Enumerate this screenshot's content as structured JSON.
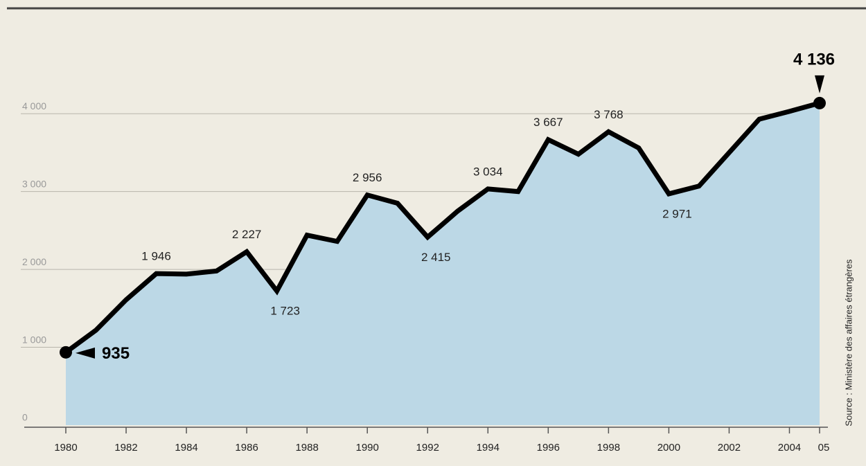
{
  "chart_data": {
    "type": "area",
    "source": "Source : Ministère des affaires étrangères",
    "x": [
      1980,
      1981,
      1982,
      1983,
      1984,
      1985,
      1986,
      1987,
      1988,
      1989,
      1990,
      1991,
      1992,
      1993,
      1994,
      1995,
      1996,
      1997,
      1998,
      1999,
      2000,
      2001,
      2002,
      2003,
      2004,
      2005
    ],
    "series": [
      {
        "color": "#000000",
        "fill": "#bcd8e6",
        "values": [
          935,
          1220,
          1610,
          1946,
          1940,
          1980,
          2227,
          1723,
          2440,
          2360,
          2956,
          2850,
          2415,
          2750,
          3034,
          3000,
          3667,
          3480,
          3768,
          3560,
          2971,
          3070,
          3500,
          3930,
          4030,
          4136
        ],
        "value_labels": [
          "935",
          null,
          null,
          "1 946",
          null,
          null,
          "2 227",
          "1 723",
          null,
          null,
          "2 956",
          null,
          "2 415",
          null,
          "3 034",
          null,
          "3 667",
          null,
          "3 768",
          null,
          "2 971",
          null,
          null,
          null,
          null,
          "4 136"
        ]
      }
    ],
    "xlim": [
      1980,
      2005
    ],
    "xticks": [
      1980,
      1982,
      1984,
      1986,
      1988,
      1990,
      1992,
      1994,
      1996,
      1998,
      2000,
      2002,
      2004,
      {
        "value": 2005,
        "label": "05"
      }
    ],
    "ylim": [
      0,
      4500
    ],
    "yticks": [
      0,
      {
        "value": 1000,
        "label": "1 000"
      },
      {
        "value": 2000,
        "label": "2 000"
      },
      {
        "value": 3000,
        "label": "3 000"
      },
      {
        "value": 4000,
        "label": "4 000"
      }
    ],
    "grid": true
  }
}
